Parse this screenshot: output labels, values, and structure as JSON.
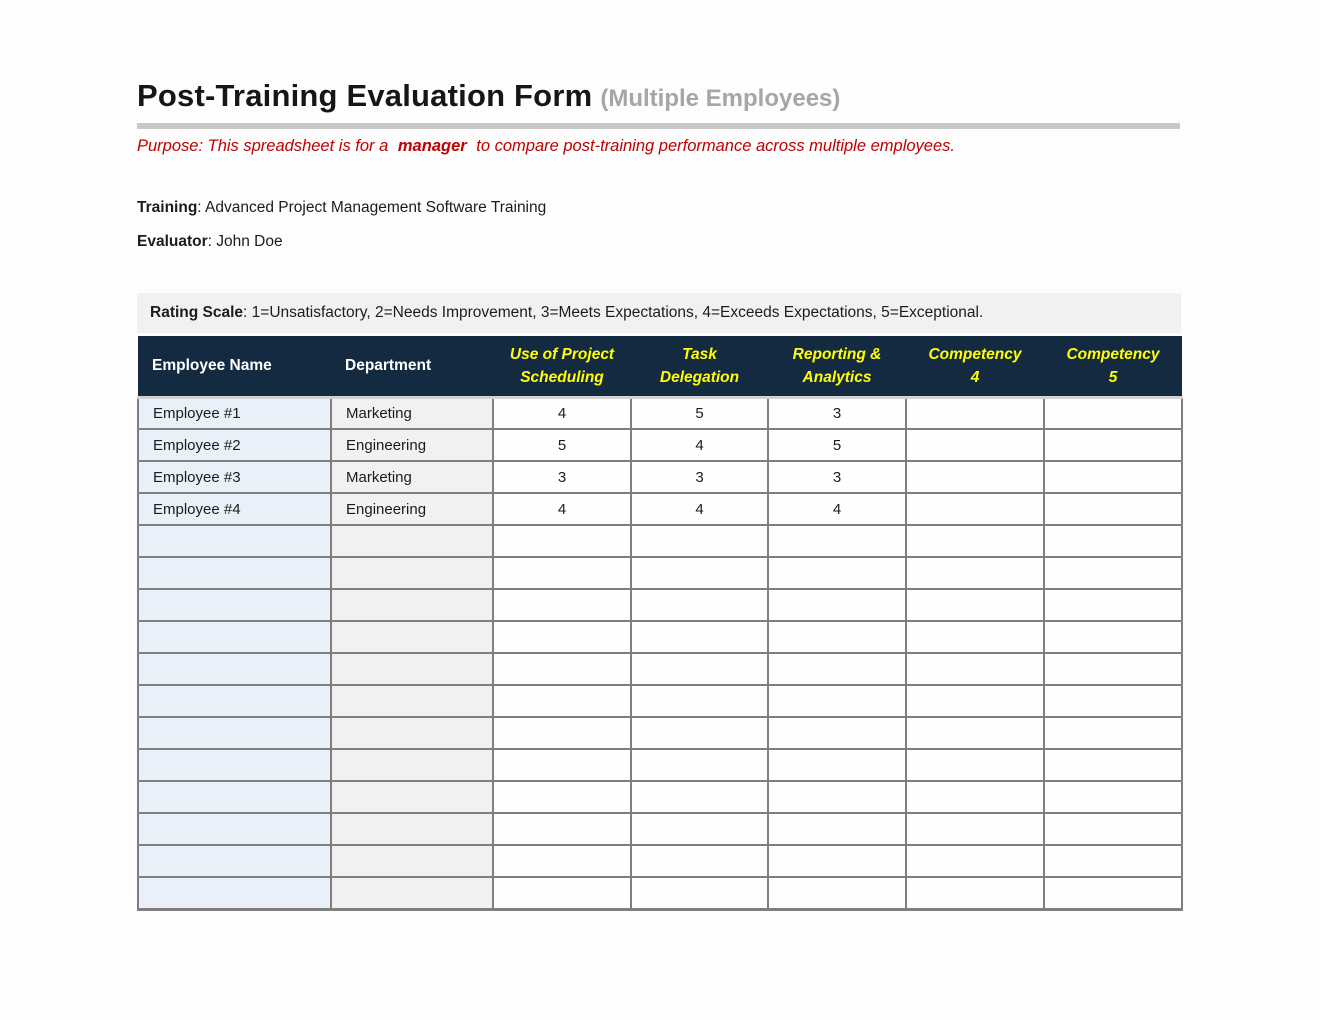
{
  "header": {
    "title": "Post-Training Evaluation Form",
    "title_suffix": "(Multiple Employees)",
    "purpose_prefix": "Purpose: This spreadsheet is for a ",
    "purpose_emphasis": "manager",
    "purpose_suffix": " to compare post-training performance across multiple employees."
  },
  "details": {
    "training_label": "Training",
    "training_value": ": Advanced Project Management Software Training",
    "evaluator_label": "Evaluator",
    "evaluator_value": ": John Doe"
  },
  "rating_scale": {
    "label": "Rating Scale",
    "text": ": 1=Unsatisfactory, 2=Needs Improvement, 3=Meets Expectations, 4=Exceeds Expectations, 5=Exceptional."
  },
  "table": {
    "columns": [
      "Employee Name",
      "Department",
      "Use of Project\nScheduling",
      "Task\nDelegation",
      "Reporting &\nAnalytics",
      "Competency\n4",
      "Competency\n5"
    ],
    "rows": [
      [
        "Employee #1",
        "Marketing",
        "4",
        "5",
        "3",
        "",
        ""
      ],
      [
        "Employee #2",
        "Engineering",
        "5",
        "4",
        "5",
        "",
        ""
      ],
      [
        "Employee #3",
        "Marketing",
        "3",
        "3",
        "3",
        "",
        ""
      ],
      [
        "Employee #4",
        "Engineering",
        "4",
        "4",
        "4",
        "",
        ""
      ],
      [
        "",
        "",
        "",
        "",
        "",
        "",
        ""
      ],
      [
        "",
        "",
        "",
        "",
        "",
        "",
        ""
      ],
      [
        "",
        "",
        "",
        "",
        "",
        "",
        ""
      ],
      [
        "",
        "",
        "",
        "",
        "",
        "",
        ""
      ],
      [
        "",
        "",
        "",
        "",
        "",
        "",
        ""
      ],
      [
        "",
        "",
        "",
        "",
        "",
        "",
        ""
      ],
      [
        "",
        "",
        "",
        "",
        "",
        "",
        ""
      ],
      [
        "",
        "",
        "",
        "",
        "",
        "",
        ""
      ],
      [
        "",
        "",
        "",
        "",
        "",
        "",
        ""
      ],
      [
        "",
        "",
        "",
        "",
        "",
        "",
        ""
      ],
      [
        "",
        "",
        "",
        "",
        "",
        "",
        ""
      ],
      [
        "",
        "",
        "",
        "",
        "",
        "",
        ""
      ]
    ]
  },
  "colors": {
    "header_bg": "#142a40",
    "header_text": "#ffffff",
    "competency_text": "#ffff00",
    "accent_red": "#c00000",
    "name_col_bg": "#e9f0f9",
    "dept_col_bg": "#f1f1f0",
    "scale_band_bg": "#f1f1f1",
    "cell_border": "#7f7f7f",
    "title_gray": "#a6a6a6",
    "rule_gray": "#c9c9c9"
  }
}
